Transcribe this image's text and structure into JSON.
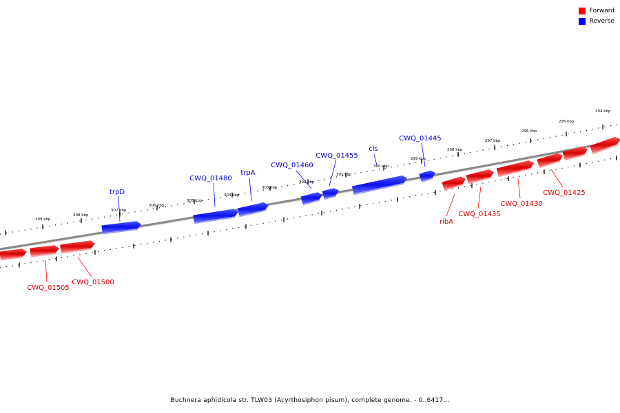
{
  "legend": {
    "forward": {
      "label": "Forward",
      "color": "#ff0000"
    },
    "reverse": {
      "label": "Reverse",
      "color": "#0000ff"
    }
  },
  "caption": "Buchnera aphidicola str. TLW03 (Acyrthosiphon pisum), complete genome. - 0..6417...",
  "ticks": [
    "309 kbp",
    "308 kbp",
    "307 kbp",
    "306 kbp",
    "305 kbp",
    "304 kbp",
    "303 kbp",
    "302 kbp",
    "301 kbp",
    "300 kbp",
    "299 kbp",
    "298 kbp",
    "297 kbp",
    "296 kbp",
    "295 kbp",
    "294 kbp"
  ],
  "reverse_genes": [
    "trpD",
    "CWQ_01480",
    "trpA",
    "CWQ_01460",
    "CWQ_01455",
    "cls",
    "CWQ_01445"
  ],
  "forward_genes": [
    "CWQ_01505",
    "CWQ_01500",
    "ribA",
    "CWQ_01435",
    "CWQ_01430",
    "CWQ_01425"
  ]
}
